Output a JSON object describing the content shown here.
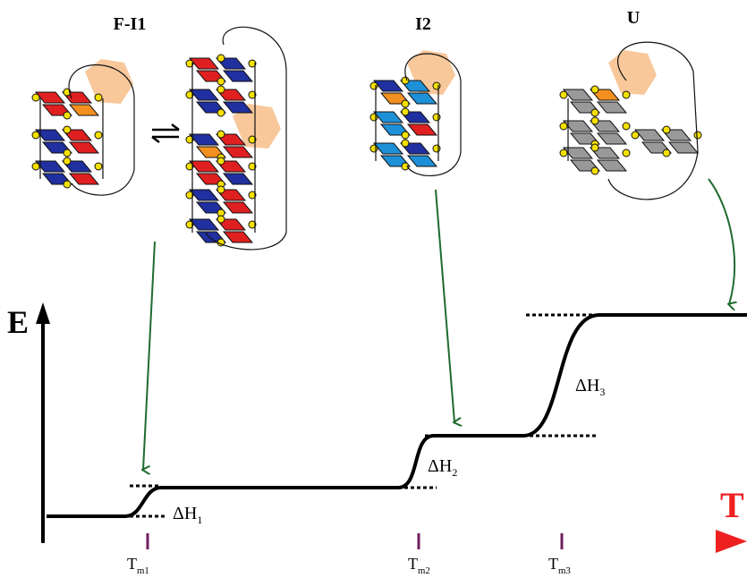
{
  "structures": [
    {
      "label": "F-I1"
    },
    {
      "label": "I2"
    },
    {
      "label": "U"
    }
  ],
  "axes": {
    "y_label": "E",
    "x_label": "T"
  },
  "enthalpies": [
    {
      "main": "ΔH",
      "sub": "1"
    },
    {
      "main": "ΔH",
      "sub": "2"
    },
    {
      "main": "ΔH",
      "sub": "3"
    }
  ],
  "temperatures": [
    {
      "main": "T",
      "sub": "m1"
    },
    {
      "main": "T",
      "sub": "m2"
    },
    {
      "main": "T",
      "sub": "m3"
    }
  ]
}
